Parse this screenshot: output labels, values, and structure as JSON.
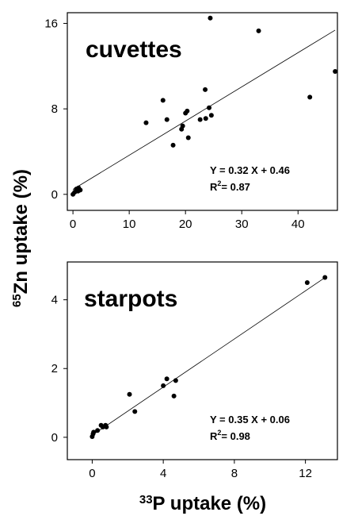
{
  "chart_data": [
    {
      "type": "scatter",
      "title": "cuvettes",
      "xlim": [
        -1,
        47
      ],
      "ylim": [
        -1.5,
        17
      ],
      "xticks": [
        "0",
        "10",
        "20",
        "30",
        "40"
      ],
      "xtick_values": [
        0,
        10,
        20,
        30,
        40
      ],
      "yticks": [
        "0",
        "8",
        "16"
      ],
      "ytick_values": [
        0,
        8,
        16
      ],
      "points": [
        {
          "x": 0.0,
          "y": 0.0
        },
        {
          "x": 0.3,
          "y": 0.2
        },
        {
          "x": 0.6,
          "y": 0.5
        },
        {
          "x": 1.0,
          "y": 0.6
        },
        {
          "x": 1.3,
          "y": 0.4
        },
        {
          "x": 0.9,
          "y": 0.3
        },
        {
          "x": 13.0,
          "y": 6.7
        },
        {
          "x": 16.0,
          "y": 8.8
        },
        {
          "x": 16.7,
          "y": 7.0
        },
        {
          "x": 17.8,
          "y": 4.6
        },
        {
          "x": 19.3,
          "y": 6.1
        },
        {
          "x": 19.5,
          "y": 6.4
        },
        {
          "x": 20.0,
          "y": 7.6
        },
        {
          "x": 20.3,
          "y": 7.8
        },
        {
          "x": 20.5,
          "y": 5.3
        },
        {
          "x": 22.6,
          "y": 7.0
        },
        {
          "x": 23.6,
          "y": 7.1
        },
        {
          "x": 23.5,
          "y": 9.8
        },
        {
          "x": 24.2,
          "y": 8.1
        },
        {
          "x": 24.6,
          "y": 7.4
        },
        {
          "x": 24.4,
          "y": 16.5
        },
        {
          "x": 33.0,
          "y": 15.3
        },
        {
          "x": 42.1,
          "y": 9.1
        },
        {
          "x": 46.6,
          "y": 11.5
        }
      ],
      "fit": {
        "slope": 0.32,
        "intercept": 0.46
      },
      "equation": "Y =  0.32 X + 0.46",
      "r2_label": "R",
      "r2_sup": "2",
      "r2_value": "=  0.87"
    },
    {
      "type": "scatter",
      "title": "starpots",
      "xlim": [
        -1.4,
        13.8
      ],
      "ylim": [
        -0.65,
        5.1
      ],
      "xticks": [
        "0",
        "4",
        "8",
        "12"
      ],
      "xtick_values": [
        0,
        4,
        8,
        12
      ],
      "yticks": [
        "0",
        "2",
        "4"
      ],
      "ytick_values": [
        0,
        2,
        4
      ],
      "points": [
        {
          "x": 0.0,
          "y": 0.02
        },
        {
          "x": 0.05,
          "y": 0.1
        },
        {
          "x": 0.08,
          "y": 0.15
        },
        {
          "x": 0.3,
          "y": 0.2
        },
        {
          "x": 0.5,
          "y": 0.35
        },
        {
          "x": 0.6,
          "y": 0.3
        },
        {
          "x": 0.75,
          "y": 0.35
        },
        {
          "x": 0.8,
          "y": 0.3
        },
        {
          "x": 2.1,
          "y": 1.25
        },
        {
          "x": 2.4,
          "y": 0.75
        },
        {
          "x": 4.0,
          "y": 1.5
        },
        {
          "x": 4.2,
          "y": 1.7
        },
        {
          "x": 4.6,
          "y": 1.2
        },
        {
          "x": 4.7,
          "y": 1.65
        },
        {
          "x": 12.1,
          "y": 4.5
        },
        {
          "x": 13.1,
          "y": 4.65
        }
      ],
      "fit": {
        "slope": 0.35,
        "intercept": 0.06
      },
      "equation": "Y =  0.35 X + 0.06",
      "r2_label": "R",
      "r2_sup": "2",
      "r2_value": "=  0.98"
    }
  ],
  "axes": {
    "ylabel_sup": "65",
    "ylabel_text": "Zn uptake (%)",
    "xlabel_sup": "33",
    "xlabel_text": "P uptake (%)"
  }
}
